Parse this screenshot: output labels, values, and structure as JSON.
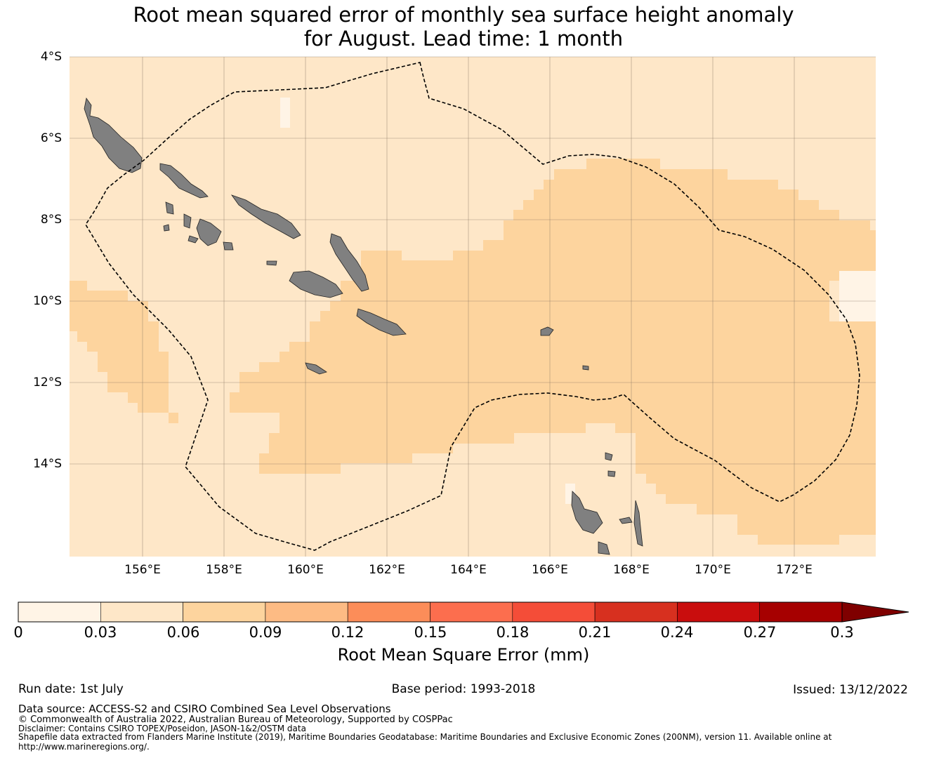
{
  "title_line1": "Root mean squared error of monthly sea surface height anomaly",
  "title_line2": "for August. Lead time: 1 month",
  "map": {
    "projection": "equirectangular",
    "lon_range": [
      154.2,
      174.0
    ],
    "lat_range": [
      -16.3,
      -4.0
    ],
    "lat_labels": [
      "4°S",
      "6°S",
      "8°S",
      "10°S",
      "12°S",
      "14°S"
    ],
    "lat_values": [
      -4,
      -6,
      -8,
      -10,
      -12,
      -14
    ],
    "lon_labels": [
      "156°E",
      "158°E",
      "160°E",
      "162°E",
      "164°E",
      "166°E",
      "168°E",
      "170°E",
      "172°E"
    ],
    "lon_values": [
      156,
      158,
      160,
      162,
      164,
      166,
      168,
      170,
      172
    ],
    "grid": true,
    "boundary_style": "dashed",
    "colors": {
      "land": "#808080",
      "grid": "#8c7a66",
      "boundary": "#000000"
    }
  },
  "colorbar": {
    "label": "Root Mean Square Error (mm)",
    "tick_labels": [
      "0",
      "0.03",
      "0.06",
      "0.09",
      "0.12",
      "0.15",
      "0.18",
      "0.21",
      "0.24",
      "0.27",
      "0.3"
    ],
    "colors": [
      "#fff4e6",
      "#fee7c8",
      "#fdd49e",
      "#fdbb84",
      "#fc8d59",
      "#fc6e4e",
      "#f44d38",
      "#d7301f",
      "#c90d0d",
      "#a60000",
      "#7f0000"
    ],
    "extend": "max"
  },
  "footer": {
    "run_date": "Run date: 1st July",
    "base_period": "Base period: 1993-2018",
    "issued": "Issued: 13/12/2022",
    "data_source": "Data source: ACCESS-S2 and CSIRO Combined Sea Level Observations",
    "copyright": "© Commonwealth of Australia 2022, Australian Bureau of Meteorology, Supported by COSPPac",
    "disclaimer": "Disclaimer: Contains CSIRO TOPEX/Poseidon, JASON-1&2/OSTM data",
    "shapefile": "Shapefile data extracted from Flanders Marine Institute (2019), Maritime Boundaries Geodatabase: Maritime Boundaries and Exclusive Economic Zones (200NM), version 11. Available online at",
    "url": "http://www.marineregions.org/."
  }
}
